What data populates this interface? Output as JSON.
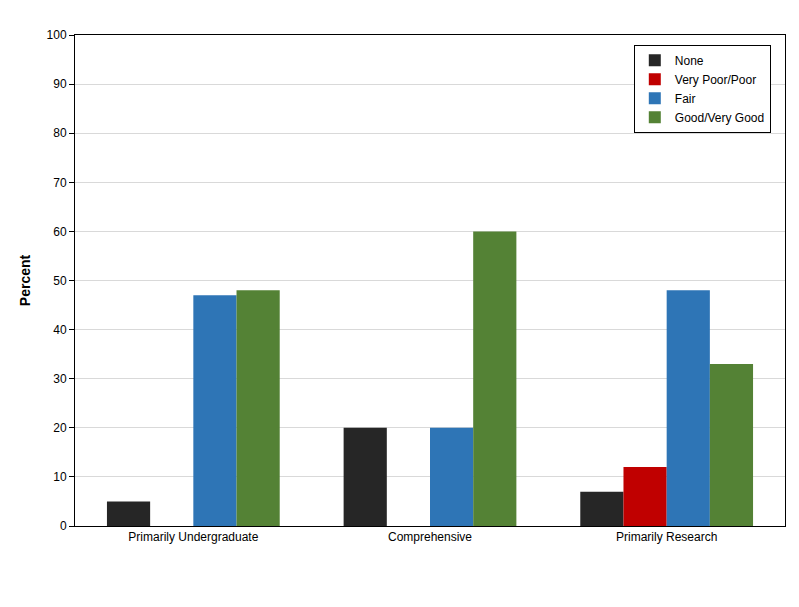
{
  "chart_data": {
    "type": "bar",
    "categories": [
      "Primarily Undergraduate",
      "Comprehensive",
      "Primarily Research"
    ],
    "series": [
      {
        "name": "None",
        "color": "#262626",
        "values": [
          5,
          20,
          7
        ]
      },
      {
        "name": "Very Poor/Poor",
        "color": "#c00000",
        "values": [
          0,
          0,
          12
        ]
      },
      {
        "name": "Fair",
        "color": "#2e75b6",
        "values": [
          47,
          20,
          48
        ]
      },
      {
        "name": "Good/Very Good",
        "color": "#548235",
        "values": [
          48,
          60,
          33
        ]
      }
    ],
    "y_label": "Percent",
    "ylim": [
      0,
      100
    ],
    "yticks": [
      0,
      10,
      20,
      30,
      40,
      50,
      60,
      70,
      80,
      90,
      100
    ],
    "grid": true,
    "legend": "top right"
  }
}
